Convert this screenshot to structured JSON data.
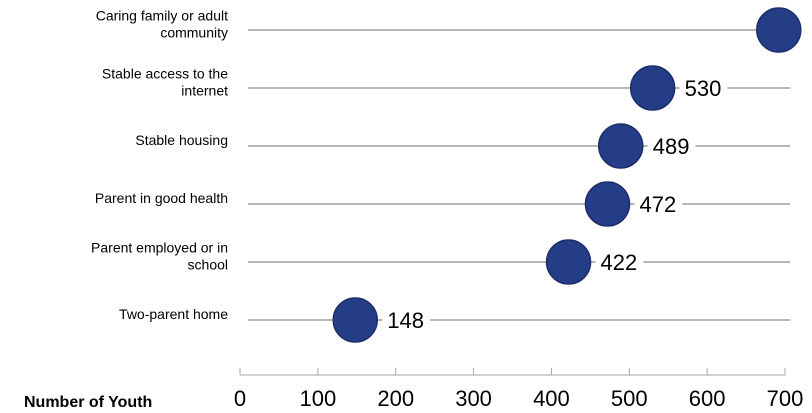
{
  "chart_data": {
    "type": "scatter",
    "title": "",
    "xlabel": "Number of Youth",
    "ylabel": "",
    "xlim": [
      0,
      700
    ],
    "x_ticks": [
      0,
      100,
      200,
      300,
      400,
      500,
      600,
      700
    ],
    "grid": false,
    "legend": "none",
    "categories": [
      [
        "Caring family or adult",
        "community"
      ],
      [
        "Stable access to the",
        "internet"
      ],
      [
        "Stable housing"
      ],
      [
        "Parent in good health"
      ],
      [
        "Parent employed or in",
        "school"
      ],
      [
        "Two-parent home"
      ]
    ],
    "values": [
      692,
      530,
      489,
      472,
      422,
      148
    ],
    "value_labels": [
      "",
      "530",
      "489",
      "472",
      "422",
      "148"
    ],
    "colors": {
      "dot_fill": "#253C86",
      "dot_stroke": "#1D2F6B",
      "line": "#8C8C8C",
      "axis": "#A6A6A6"
    }
  }
}
